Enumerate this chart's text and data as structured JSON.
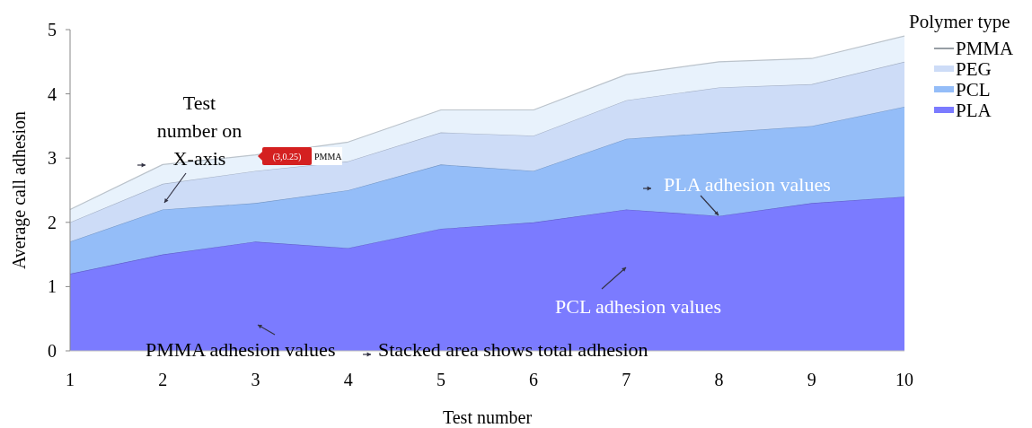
{
  "chart_data": {
    "type": "area",
    "stacked": true,
    "xlabel": "Test number",
    "ylabel": "Average call adhesion",
    "legend_title": "Polymer type",
    "legend": "top right",
    "x": [
      1,
      2,
      3,
      4,
      5,
      6,
      7,
      8,
      9,
      10
    ],
    "xlim": [
      1,
      10
    ],
    "xticks": [
      1,
      2,
      3,
      4,
      5,
      6,
      7,
      8,
      9,
      10
    ],
    "ylim": [
      0,
      5
    ],
    "yticks": [
      0,
      1,
      2,
      3,
      4,
      5
    ],
    "series": [
      {
        "name": "PLA",
        "color": "#7b7bff",
        "values": [
          1.2,
          1.5,
          1.7,
          1.6,
          1.9,
          2.0,
          2.2,
          2.1,
          2.3,
          2.4
        ]
      },
      {
        "name": "PCL",
        "color": "#94bdf8",
        "values": [
          0.5,
          0.7,
          0.6,
          0.9,
          1.0,
          0.8,
          1.1,
          1.3,
          1.2,
          1.4
        ]
      },
      {
        "name": "PEG",
        "color": "#cddcf7",
        "values": [
          0.3,
          0.4,
          0.5,
          0.45,
          0.5,
          0.55,
          0.6,
          0.7,
          0.65,
          0.7
        ]
      },
      {
        "name": "PMMA",
        "color": "#e8f2fc",
        "values": [
          0.2,
          0.3,
          0.25,
          0.3,
          0.35,
          0.4,
          0.4,
          0.4,
          0.4,
          0.4
        ]
      }
    ],
    "annotations": [
      "Test number on X-axis",
      "(3,0.25)",
      "PMMA",
      "PLA adhesion values",
      "PCL adhesion values",
      "PMMA adhesion values",
      "Stacked area shows total adhesion"
    ]
  }
}
